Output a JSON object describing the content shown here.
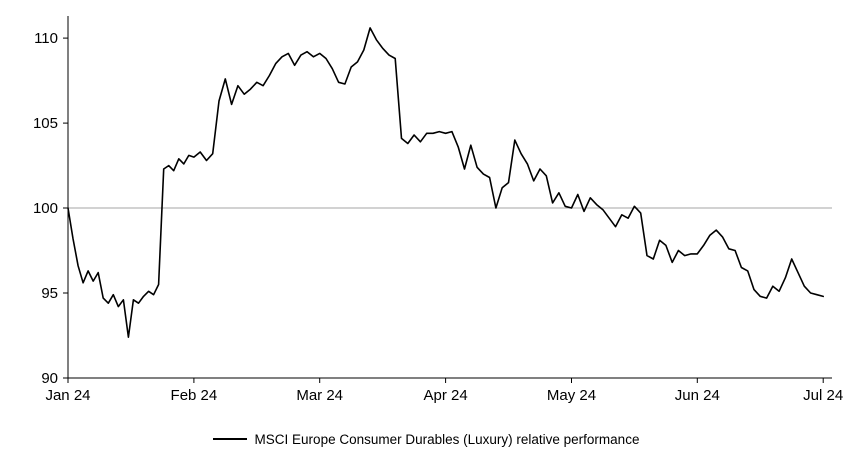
{
  "chart_data": {
    "type": "line",
    "title": "",
    "xlabel": "",
    "ylabel": "",
    "x_axis": {
      "ticks": [
        0,
        1,
        2,
        3,
        4,
        5,
        6
      ],
      "tick_labels": [
        "Jan 24",
        "Feb 24",
        "Mar 24",
        "Apr 24",
        "May 24",
        "Jun 24",
        "Jul 24"
      ],
      "range": [
        0,
        6.07
      ]
    },
    "y_axis": {
      "ticks": [
        90,
        95,
        100,
        105,
        110
      ],
      "range": [
        90,
        111.3
      ]
    },
    "grid": "off",
    "reference_line": {
      "value": 100,
      "color": "#a6a6a6"
    },
    "axis_color": "#000000",
    "legend": {
      "position": "bottom",
      "label": "MSCI Europe Consumer Durables (Luxury) relative performance"
    },
    "series": [
      {
        "name": "MSCI Europe Consumer Durables (Luxury) relative performance",
        "color": "#000000",
        "points": [
          [
            0.0,
            100.0
          ],
          [
            0.04,
            98.2
          ],
          [
            0.08,
            96.6
          ],
          [
            0.12,
            95.6
          ],
          [
            0.16,
            96.3
          ],
          [
            0.2,
            95.7
          ],
          [
            0.24,
            96.2
          ],
          [
            0.28,
            94.7
          ],
          [
            0.32,
            94.4
          ],
          [
            0.36,
            94.9
          ],
          [
            0.4,
            94.2
          ],
          [
            0.44,
            94.6
          ],
          [
            0.48,
            92.4
          ],
          [
            0.52,
            94.6
          ],
          [
            0.56,
            94.4
          ],
          [
            0.6,
            94.8
          ],
          [
            0.64,
            95.1
          ],
          [
            0.68,
            94.9
          ],
          [
            0.72,
            95.5
          ],
          [
            0.76,
            102.3
          ],
          [
            0.8,
            102.5
          ],
          [
            0.84,
            102.2
          ],
          [
            0.88,
            102.9
          ],
          [
            0.92,
            102.6
          ],
          [
            0.96,
            103.1
          ],
          [
            1.0,
            103.0
          ],
          [
            1.05,
            103.3
          ],
          [
            1.1,
            102.8
          ],
          [
            1.15,
            103.2
          ],
          [
            1.2,
            106.3
          ],
          [
            1.25,
            107.6
          ],
          [
            1.3,
            106.1
          ],
          [
            1.35,
            107.2
          ],
          [
            1.4,
            106.7
          ],
          [
            1.45,
            107.0
          ],
          [
            1.5,
            107.4
          ],
          [
            1.55,
            107.2
          ],
          [
            1.6,
            107.8
          ],
          [
            1.65,
            108.5
          ],
          [
            1.7,
            108.9
          ],
          [
            1.75,
            109.1
          ],
          [
            1.8,
            108.4
          ],
          [
            1.85,
            109.0
          ],
          [
            1.9,
            109.2
          ],
          [
            1.95,
            108.9
          ],
          [
            2.0,
            109.1
          ],
          [
            2.05,
            108.8
          ],
          [
            2.1,
            108.2
          ],
          [
            2.15,
            107.4
          ],
          [
            2.2,
            107.3
          ],
          [
            2.25,
            108.3
          ],
          [
            2.3,
            108.6
          ],
          [
            2.35,
            109.3
          ],
          [
            2.4,
            110.6
          ],
          [
            2.45,
            109.9
          ],
          [
            2.5,
            109.4
          ],
          [
            2.55,
            109.0
          ],
          [
            2.6,
            108.8
          ],
          [
            2.65,
            104.1
          ],
          [
            2.7,
            103.8
          ],
          [
            2.75,
            104.3
          ],
          [
            2.8,
            103.9
          ],
          [
            2.85,
            104.4
          ],
          [
            2.9,
            104.4
          ],
          [
            2.95,
            104.5
          ],
          [
            3.0,
            104.4
          ],
          [
            3.05,
            104.5
          ],
          [
            3.1,
            103.6
          ],
          [
            3.15,
            102.3
          ],
          [
            3.2,
            103.7
          ],
          [
            3.25,
            102.4
          ],
          [
            3.3,
            102.0
          ],
          [
            3.35,
            101.8
          ],
          [
            3.4,
            100.0
          ],
          [
            3.45,
            101.2
          ],
          [
            3.5,
            101.5
          ],
          [
            3.55,
            104.0
          ],
          [
            3.6,
            103.2
          ],
          [
            3.65,
            102.6
          ],
          [
            3.7,
            101.6
          ],
          [
            3.75,
            102.3
          ],
          [
            3.8,
            101.9
          ],
          [
            3.85,
            100.3
          ],
          [
            3.9,
            100.9
          ],
          [
            3.95,
            100.1
          ],
          [
            4.0,
            100.0
          ],
          [
            4.05,
            100.8
          ],
          [
            4.1,
            99.8
          ],
          [
            4.15,
            100.6
          ],
          [
            4.2,
            100.2
          ],
          [
            4.25,
            99.9
          ],
          [
            4.3,
            99.4
          ],
          [
            4.35,
            98.9
          ],
          [
            4.4,
            99.6
          ],
          [
            4.45,
            99.4
          ],
          [
            4.5,
            100.1
          ],
          [
            4.55,
            99.7
          ],
          [
            4.6,
            97.2
          ],
          [
            4.65,
            97.0
          ],
          [
            4.7,
            98.1
          ],
          [
            4.75,
            97.8
          ],
          [
            4.8,
            96.8
          ],
          [
            4.85,
            97.5
          ],
          [
            4.9,
            97.2
          ],
          [
            4.95,
            97.3
          ],
          [
            5.0,
            97.3
          ],
          [
            5.05,
            97.8
          ],
          [
            5.1,
            98.4
          ],
          [
            5.15,
            98.7
          ],
          [
            5.2,
            98.3
          ],
          [
            5.25,
            97.6
          ],
          [
            5.3,
            97.5
          ],
          [
            5.35,
            96.5
          ],
          [
            5.4,
            96.3
          ],
          [
            5.45,
            95.2
          ],
          [
            5.5,
            94.8
          ],
          [
            5.55,
            94.7
          ],
          [
            5.6,
            95.4
          ],
          [
            5.65,
            95.1
          ],
          [
            5.7,
            95.9
          ],
          [
            5.75,
            97.0
          ],
          [
            5.8,
            96.2
          ],
          [
            5.85,
            95.4
          ],
          [
            5.9,
            95.0
          ],
          [
            5.95,
            94.9
          ],
          [
            6.0,
            94.8
          ]
        ]
      }
    ]
  }
}
